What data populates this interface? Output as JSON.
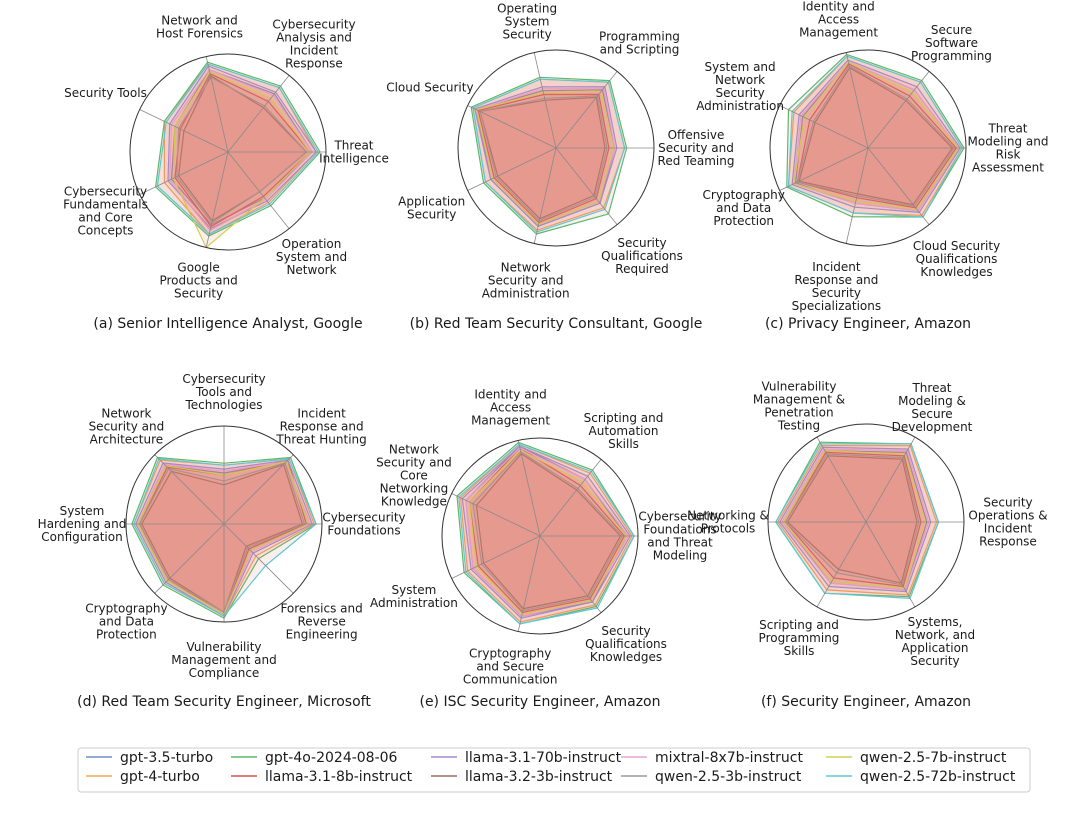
{
  "colors": {
    "fill": "#e07a6a",
    "ring": "#333333",
    "spoke": "#8a8a8a",
    "legend_border": "#cccccc"
  },
  "chart_data": [
    {
      "type": "radar",
      "caption": "(a) Senior Intelligence Analyst, Google",
      "axes": [
        "Threat Intelligence",
        "Cybersecurity Analysis and Incident Response",
        "Network and Host Forensics",
        "Security Tools",
        "Cybersecurity Fundamentals and Core Concepts",
        "Google Products and Security",
        "Operation System and Network"
      ],
      "rlim": [
        0,
        1
      ],
      "series": [
        {
          "name": "gpt-3.5-turbo",
          "values": [
            0.86,
            0.76,
            0.86,
            0.6,
            0.64,
            0.76,
            0.6
          ]
        },
        {
          "name": "gpt-4-turbo",
          "values": [
            0.9,
            0.84,
            0.92,
            0.72,
            0.72,
            0.86,
            0.66
          ]
        },
        {
          "name": "gpt-4o-2024-08-06",
          "values": [
            0.94,
            0.86,
            0.94,
            0.72,
            0.82,
            0.88,
            0.7
          ]
        },
        {
          "name": "llama-3.1-8b-instruct",
          "values": [
            0.84,
            0.66,
            0.82,
            0.54,
            0.6,
            0.78,
            0.58
          ]
        },
        {
          "name": "llama-3.1-70b-instruct",
          "values": [
            0.9,
            0.78,
            0.9,
            0.66,
            0.68,
            0.8,
            0.64
          ]
        },
        {
          "name": "llama-3.2-3b-instruct",
          "values": [
            0.8,
            0.58,
            0.8,
            0.5,
            0.56,
            0.72,
            0.52
          ]
        },
        {
          "name": "mixtral-8x7b-instruct",
          "values": [
            0.86,
            0.74,
            0.86,
            0.64,
            0.66,
            0.82,
            0.62
          ]
        },
        {
          "name": "qwen-2.5-3b-instruct",
          "values": [
            0.8,
            0.6,
            0.78,
            0.56,
            0.58,
            0.74,
            0.52
          ]
        },
        {
          "name": "qwen-2.5-7b-instruct",
          "values": [
            0.84,
            0.7,
            0.84,
            0.6,
            0.62,
            1.0,
            0.6
          ]
        },
        {
          "name": "qwen-2.5-72b-instruct",
          "values": [
            0.92,
            0.84,
            0.92,
            0.7,
            0.8,
            0.86,
            0.68
          ]
        }
      ]
    },
    {
      "type": "radar",
      "caption": "(b) Red Team Security Consultant, Google",
      "axes": [
        "Offensive Security and Red Teaming",
        "Programming and Scripting",
        "Operating System Security",
        "Cloud Security",
        "Application Security",
        "Network Security and Administration",
        "Security Qualifications Required"
      ],
      "rlim": [
        0,
        1
      ],
      "series": [
        {
          "name": "gpt-3.5-turbo",
          "values": [
            0.6,
            0.76,
            0.6,
            0.9,
            0.74,
            0.82,
            0.72
          ]
        },
        {
          "name": "gpt-4-turbo",
          "values": [
            0.7,
            0.86,
            0.72,
            0.94,
            0.8,
            0.86,
            0.78
          ]
        },
        {
          "name": "gpt-4o-2024-08-06",
          "values": [
            0.72,
            0.88,
            0.74,
            0.96,
            0.82,
            0.9,
            0.86
          ]
        },
        {
          "name": "llama-3.1-8b-instruct",
          "values": [
            0.54,
            0.7,
            0.56,
            0.88,
            0.7,
            0.78,
            0.66
          ]
        },
        {
          "name": "llama-3.1-70b-instruct",
          "values": [
            0.62,
            0.8,
            0.64,
            0.92,
            0.74,
            0.82,
            0.72
          ]
        },
        {
          "name": "llama-3.2-3b-instruct",
          "values": [
            0.5,
            0.66,
            0.5,
            0.86,
            0.66,
            0.74,
            0.62
          ]
        },
        {
          "name": "mixtral-8x7b-instruct",
          "values": [
            0.6,
            0.78,
            0.62,
            0.9,
            0.72,
            0.8,
            0.7
          ]
        },
        {
          "name": "qwen-2.5-3b-instruct",
          "values": [
            0.52,
            0.68,
            0.52,
            0.86,
            0.68,
            0.76,
            0.64
          ]
        },
        {
          "name": "qwen-2.5-7b-instruct",
          "values": [
            0.58,
            0.74,
            0.58,
            0.9,
            0.72,
            0.8,
            0.7
          ]
        },
        {
          "name": "qwen-2.5-72b-instruct",
          "values": [
            0.7,
            0.86,
            0.72,
            0.94,
            0.8,
            0.88,
            0.8
          ]
        }
      ]
    },
    {
      "type": "radar",
      "caption": "(c) Privacy Engineer, Amazon",
      "axes": [
        "Threat Modeling and Risk Assessment",
        "Secure Software Programming",
        "Identity and Access Management",
        "System and Network Security Administration",
        "Cryptography and Data Protection",
        "Incident Response and Security Specializations",
        "Cloud Security Qualifications Knowledges"
      ],
      "rlim": [
        0,
        1
      ],
      "series": [
        {
          "name": "gpt-3.5-turbo",
          "values": [
            0.92,
            0.76,
            0.9,
            0.74,
            0.82,
            0.58,
            0.82
          ]
        },
        {
          "name": "gpt-4-turbo",
          "values": [
            0.96,
            0.86,
            0.96,
            0.84,
            0.9,
            0.68,
            0.88
          ]
        },
        {
          "name": "gpt-4o-2024-08-06",
          "values": [
            0.98,
            0.88,
            0.98,
            0.9,
            0.92,
            0.72,
            0.9
          ]
        },
        {
          "name": "llama-3.1-8b-instruct",
          "values": [
            0.9,
            0.68,
            0.88,
            0.66,
            0.8,
            0.52,
            0.78
          ]
        },
        {
          "name": "llama-3.1-70b-instruct",
          "values": [
            0.94,
            0.8,
            0.92,
            0.78,
            0.86,
            0.62,
            0.84
          ]
        },
        {
          "name": "llama-3.2-3b-instruct",
          "values": [
            0.86,
            0.62,
            0.84,
            0.6,
            0.78,
            0.48,
            0.74
          ]
        },
        {
          "name": "mixtral-8x7b-instruct",
          "values": [
            0.92,
            0.76,
            0.9,
            0.76,
            0.84,
            0.58,
            0.82
          ]
        },
        {
          "name": "qwen-2.5-3b-instruct",
          "values": [
            0.88,
            0.64,
            0.86,
            0.62,
            0.8,
            0.5,
            0.76
          ]
        },
        {
          "name": "qwen-2.5-7b-instruct",
          "values": [
            0.92,
            0.72,
            0.9,
            0.72,
            0.84,
            0.56,
            0.8
          ]
        },
        {
          "name": "qwen-2.5-72b-instruct",
          "values": [
            0.96,
            0.86,
            0.96,
            0.86,
            0.9,
            0.68,
            0.9
          ]
        }
      ]
    },
    {
      "type": "radar",
      "caption": "(d) Red Team Security Engineer, Microsoft",
      "axes": [
        "Cybersecurity Foundations",
        "Incident Response and Threat Hunting",
        "Cybersecurity Tools and Technologies",
        "Network Security and Architecture",
        "System Hardening and Configuration",
        "Cryptography and Data Protection",
        "Vulnerability Management and Compliance",
        "Forensics and Reverse Engineering"
      ],
      "rlim": [
        0,
        1
      ],
      "series": [
        {
          "name": "gpt-3.5-turbo",
          "values": [
            0.86,
            0.9,
            0.52,
            0.84,
            0.88,
            0.82,
            0.92,
            0.38
          ]
        },
        {
          "name": "gpt-4-turbo",
          "values": [
            0.92,
            0.94,
            0.6,
            0.92,
            0.92,
            0.86,
            0.94,
            0.46
          ]
        },
        {
          "name": "gpt-4o-2024-08-06",
          "values": [
            0.94,
            0.96,
            0.62,
            0.96,
            0.94,
            0.88,
            0.96,
            0.5
          ]
        },
        {
          "name": "llama-3.1-8b-instruct",
          "values": [
            0.84,
            0.92,
            0.5,
            0.82,
            0.86,
            0.8,
            0.92,
            0.36
          ]
        },
        {
          "name": "llama-3.1-70b-instruct",
          "values": [
            0.9,
            0.92,
            0.56,
            0.88,
            0.9,
            0.84,
            0.94,
            0.42
          ]
        },
        {
          "name": "llama-3.2-3b-instruct",
          "values": [
            0.8,
            0.86,
            0.4,
            0.76,
            0.84,
            0.78,
            0.9,
            0.32
          ]
        },
        {
          "name": "mixtral-8x7b-instruct",
          "values": [
            0.88,
            0.9,
            0.54,
            0.86,
            0.88,
            0.82,
            0.92,
            0.4
          ]
        },
        {
          "name": "qwen-2.5-3b-instruct",
          "values": [
            0.82,
            0.88,
            0.44,
            0.8,
            0.86,
            0.8,
            0.9,
            0.34
          ]
        },
        {
          "name": "qwen-2.5-7b-instruct",
          "values": [
            0.86,
            0.9,
            0.5,
            0.84,
            0.88,
            0.82,
            0.92,
            0.38
          ]
        },
        {
          "name": "qwen-2.5-72b-instruct",
          "values": [
            0.94,
            0.94,
            0.6,
            0.94,
            0.92,
            0.86,
            0.94,
            0.6
          ]
        }
      ]
    },
    {
      "type": "radar",
      "caption": "(e) ISC Security Engineer, Amazon",
      "axes": [
        "Cybersecurity Foundations and Threat Modeling",
        "Scripting and Automation Skills",
        "Identity and Access Management",
        "Network Security and Core Networking Knowledge",
        "System Administration",
        "Cryptography and Secure Communication",
        "Security Qualifications Knowledges"
      ],
      "rlim": [
        0,
        1
      ],
      "series": [
        {
          "name": "gpt-3.5-turbo",
          "values": [
            0.88,
            0.74,
            0.94,
            0.84,
            0.76,
            0.84,
            0.86
          ]
        },
        {
          "name": "gpt-4-turbo",
          "values": [
            0.94,
            0.82,
            0.96,
            0.9,
            0.82,
            0.9,
            0.9
          ]
        },
        {
          "name": "gpt-4o-2024-08-06",
          "values": [
            0.96,
            0.86,
            0.98,
            0.94,
            0.86,
            0.92,
            0.92
          ]
        },
        {
          "name": "llama-3.1-8b-instruct",
          "values": [
            0.86,
            0.66,
            0.92,
            0.8,
            0.7,
            0.8,
            0.82
          ]
        },
        {
          "name": "llama-3.1-70b-instruct",
          "values": [
            0.92,
            0.78,
            0.94,
            0.88,
            0.78,
            0.86,
            0.86
          ]
        },
        {
          "name": "llama-3.2-3b-instruct",
          "values": [
            0.82,
            0.6,
            0.86,
            0.72,
            0.64,
            0.76,
            0.78
          ]
        },
        {
          "name": "mixtral-8x7b-instruct",
          "values": [
            0.9,
            0.74,
            0.92,
            0.84,
            0.76,
            0.84,
            0.84
          ]
        },
        {
          "name": "qwen-2.5-3b-instruct",
          "values": [
            0.84,
            0.62,
            0.88,
            0.76,
            0.66,
            0.78,
            0.8
          ]
        },
        {
          "name": "qwen-2.5-7b-instruct",
          "values": [
            0.88,
            0.7,
            0.9,
            0.8,
            0.72,
            0.82,
            0.84
          ]
        },
        {
          "name": "qwen-2.5-72b-instruct",
          "values": [
            0.96,
            0.84,
            0.96,
            0.92,
            0.84,
            0.92,
            0.94
          ]
        }
      ]
    },
    {
      "type": "radar",
      "caption": "(f) Security Engineer, Amazon",
      "axes": [
        "Security Operations & Incident Response",
        "Threat Modeling & Secure Development",
        "Vulnerability Management & Penetration Testing",
        "Networking & Protocols",
        "Scripting and Programming Skills",
        "Systems, Network, and Application Security"
      ],
      "rlim": [
        0,
        1
      ],
      "series": [
        {
          "name": "gpt-3.5-turbo",
          "values": [
            0.62,
            0.82,
            0.84,
            0.84,
            0.72,
            0.8
          ]
        },
        {
          "name": "gpt-4-turbo",
          "values": [
            0.72,
            0.9,
            0.9,
            0.9,
            0.8,
            0.86
          ]
        },
        {
          "name": "gpt-4o-2024-08-06",
          "values": [
            0.74,
            0.92,
            0.94,
            0.92,
            0.84,
            0.88
          ]
        },
        {
          "name": "llama-3.1-8b-instruct",
          "values": [
            0.56,
            0.78,
            0.82,
            0.82,
            0.66,
            0.76
          ]
        },
        {
          "name": "llama-3.1-70b-instruct",
          "values": [
            0.66,
            0.86,
            0.88,
            0.88,
            0.76,
            0.82
          ]
        },
        {
          "name": "llama-3.2-3b-instruct",
          "values": [
            0.52,
            0.74,
            0.78,
            0.8,
            0.56,
            0.72
          ]
        },
        {
          "name": "mixtral-8x7b-instruct",
          "values": [
            0.64,
            0.84,
            0.86,
            0.86,
            0.72,
            0.8
          ]
        },
        {
          "name": "qwen-2.5-3b-instruct",
          "values": [
            0.54,
            0.76,
            0.8,
            0.82,
            0.6,
            0.74
          ]
        },
        {
          "name": "qwen-2.5-7b-instruct",
          "values": [
            0.6,
            0.8,
            0.84,
            0.84,
            0.7,
            0.78
          ]
        },
        {
          "name": "qwen-2.5-72b-instruct",
          "values": [
            0.74,
            0.92,
            0.92,
            0.92,
            0.84,
            0.9
          ]
        }
      ]
    }
  ],
  "legend": {
    "placement": "bottom",
    "entries": [
      {
        "name": "gpt-3.5-turbo",
        "color": "#6b8fc7"
      },
      {
        "name": "gpt-4-turbo",
        "color": "#f2a65a"
      },
      {
        "name": "gpt-4o-2024-08-06",
        "color": "#5fb86a"
      },
      {
        "name": "llama-3.1-8b-instruct",
        "color": "#d9534f"
      },
      {
        "name": "llama-3.1-70b-instruct",
        "color": "#a38cd0"
      },
      {
        "name": "llama-3.2-3b-instruct",
        "color": "#9c6f63"
      },
      {
        "name": "mixtral-8x7b-instruct",
        "color": "#e8a3d6"
      },
      {
        "name": "qwen-2.5-3b-instruct",
        "color": "#9a9a9a"
      },
      {
        "name": "qwen-2.5-7b-instruct",
        "color": "#d6cf4e"
      },
      {
        "name": "qwen-2.5-72b-instruct",
        "color": "#5cc8d6"
      }
    ]
  }
}
